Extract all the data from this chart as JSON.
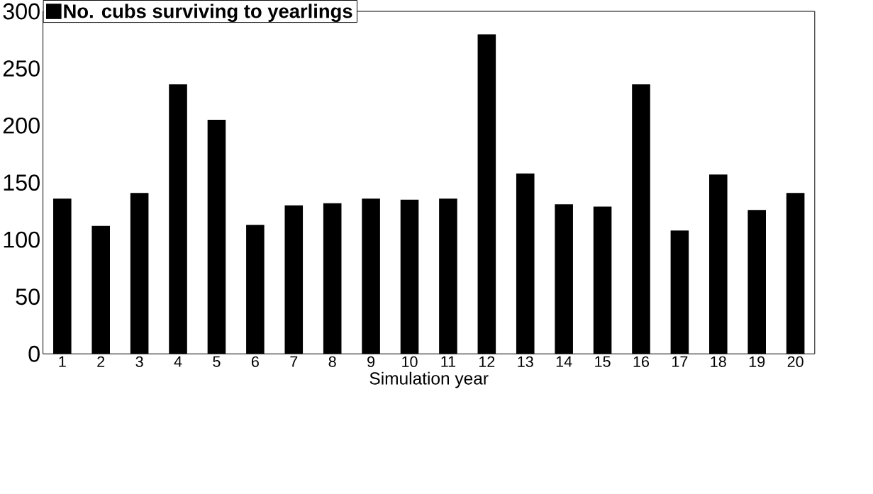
{
  "chart_data": {
    "type": "bar",
    "xlabel": "Simulation year",
    "categories": [
      "1",
      "2",
      "3",
      "4",
      "5",
      "6",
      "7",
      "8",
      "9",
      "10",
      "11",
      "12",
      "13",
      "14",
      "15",
      "16",
      "17",
      "18",
      "19",
      "20"
    ],
    "series": [
      {
        "name": "No. cubs surviving to yearlings",
        "color": "#000000",
        "values": [
          136,
          112,
          141,
          236,
          205,
          113,
          130,
          132,
          136,
          135,
          136,
          280,
          158,
          131,
          129,
          236,
          108,
          157,
          126,
          141
        ]
      }
    ],
    "ylim": [
      0,
      300
    ],
    "yticks": [
      0,
      50,
      100,
      150,
      200,
      250,
      300
    ],
    "legend": "top left",
    "grid": false
  }
}
